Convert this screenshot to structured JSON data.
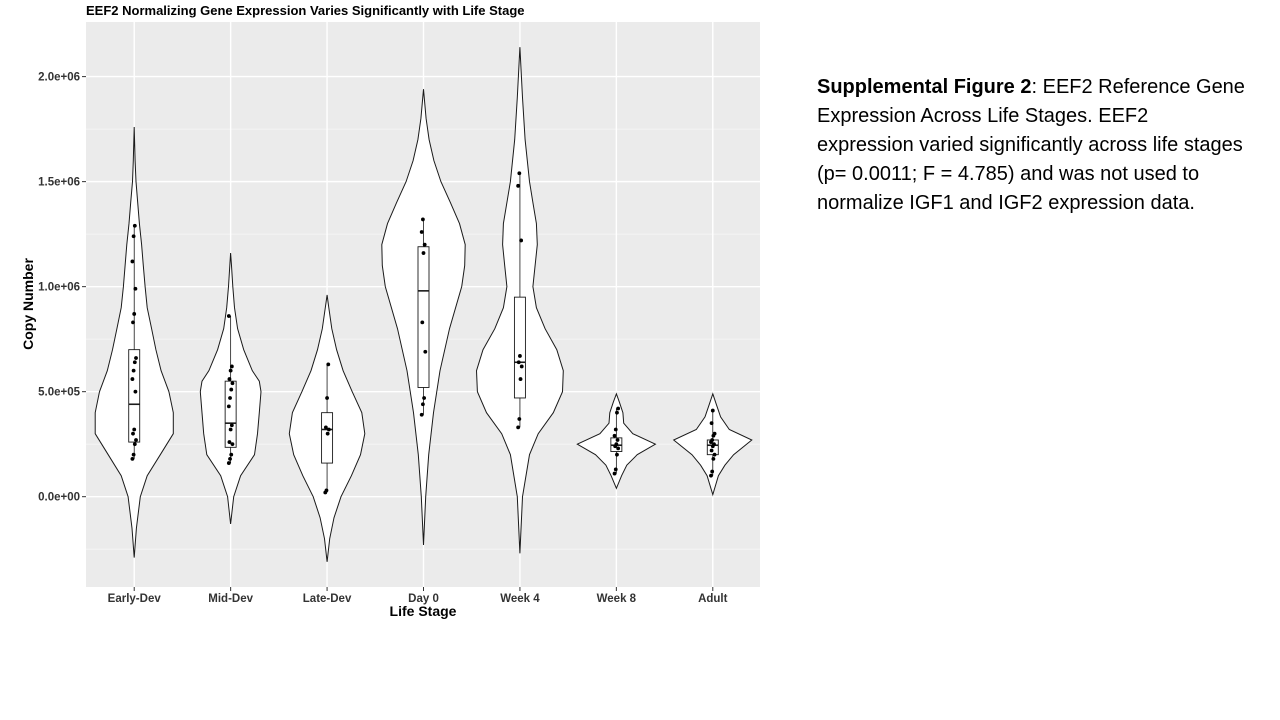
{
  "chart_data": {
    "type": "violin",
    "title": "EEF2 Normalizing Gene Expression Varies Significantly with Life Stage",
    "xlabel": "Life Stage",
    "ylabel": "Copy Number",
    "categories": [
      "Early-Dev",
      "Mid-Dev",
      "Late-Dev",
      "Day 0",
      "Week 4",
      "Week 8",
      "Adult"
    ],
    "y_ticks": [
      {
        "value": 0,
        "label": "0.0e+00"
      },
      {
        "value": 500000,
        "label": "5.0e+05"
      },
      {
        "value": 1000000,
        "label": "1.0e+06"
      },
      {
        "value": 1500000,
        "label": "1.5e+06"
      },
      {
        "value": 2000000,
        "label": "2.0e+06"
      }
    ],
    "ylim": [
      -430000,
      2260000
    ],
    "grid": true,
    "background": "#ebebeb",
    "groups": [
      {
        "name": "Early-Dev",
        "box": {
          "q1": 260000,
          "median": 440000,
          "q3": 700000,
          "whisker_low": 180000,
          "whisker_high": 1290000
        },
        "points": [
          180000,
          200000,
          250000,
          270000,
          300000,
          320000,
          500000,
          560000,
          600000,
          640000,
          660000,
          830000,
          870000,
          990000,
          1120000,
          1240000,
          1290000
        ],
        "density": [
          [
            -290000,
            0.0
          ],
          [
            -150000,
            0.05
          ],
          [
            0,
            0.14
          ],
          [
            100000,
            0.3
          ],
          [
            200000,
            0.6
          ],
          [
            300000,
            0.9
          ],
          [
            400000,
            0.9
          ],
          [
            500000,
            0.8
          ],
          [
            600000,
            0.62
          ],
          [
            700000,
            0.5
          ],
          [
            800000,
            0.4
          ],
          [
            900000,
            0.3
          ],
          [
            1000000,
            0.25
          ],
          [
            1100000,
            0.21
          ],
          [
            1200000,
            0.17
          ],
          [
            1300000,
            0.12
          ],
          [
            1400000,
            0.08
          ],
          [
            1500000,
            0.04
          ],
          [
            1600000,
            0.02
          ],
          [
            1760000,
            0.0
          ]
        ]
      },
      {
        "name": "Mid-Dev",
        "box": {
          "q1": 235000,
          "median": 350000,
          "q3": 550000,
          "whisker_low": 160000,
          "whisker_high": 860000
        },
        "points": [
          160000,
          180000,
          200000,
          250000,
          260000,
          320000,
          340000,
          430000,
          470000,
          510000,
          540000,
          560000,
          600000,
          620000,
          860000
        ],
        "density": [
          [
            -130000,
            0.0
          ],
          [
            0,
            0.07
          ],
          [
            100000,
            0.23
          ],
          [
            200000,
            0.55
          ],
          [
            300000,
            0.62
          ],
          [
            400000,
            0.66
          ],
          [
            500000,
            0.7
          ],
          [
            550000,
            0.66
          ],
          [
            600000,
            0.5
          ],
          [
            700000,
            0.3
          ],
          [
            800000,
            0.16
          ],
          [
            900000,
            0.09
          ],
          [
            1000000,
            0.05
          ],
          [
            1100000,
            0.02
          ],
          [
            1160000,
            0.0
          ]
        ]
      },
      {
        "name": "Late-Dev",
        "box": {
          "q1": 160000,
          "median": 320000,
          "q3": 400000,
          "whisker_low": 20000,
          "whisker_high": 630000
        },
        "points": [
          20000,
          30000,
          300000,
          320000,
          330000,
          470000,
          630000
        ],
        "density": [
          [
            -310000,
            0.0
          ],
          [
            -200000,
            0.06
          ],
          [
            -100000,
            0.16
          ],
          [
            0,
            0.32
          ],
          [
            100000,
            0.56
          ],
          [
            200000,
            0.77
          ],
          [
            300000,
            0.87
          ],
          [
            400000,
            0.8
          ],
          [
            500000,
            0.58
          ],
          [
            600000,
            0.37
          ],
          [
            700000,
            0.22
          ],
          [
            800000,
            0.11
          ],
          [
            900000,
            0.04
          ],
          [
            960000,
            0.0
          ]
        ]
      },
      {
        "name": "Day 0",
        "box": {
          "q1": 520000,
          "median": 980000,
          "q3": 1190000,
          "whisker_low": 390000,
          "whisker_high": 1320000
        },
        "points": [
          390000,
          440000,
          470000,
          690000,
          830000,
          1160000,
          1200000,
          1260000,
          1320000
        ],
        "density": [
          [
            -230000,
            0.0
          ],
          [
            0,
            0.05
          ],
          [
            200000,
            0.12
          ],
          [
            400000,
            0.23
          ],
          [
            600000,
            0.38
          ],
          [
            800000,
            0.6
          ],
          [
            1000000,
            0.88
          ],
          [
            1100000,
            0.95
          ],
          [
            1200000,
            0.96
          ],
          [
            1300000,
            0.83
          ],
          [
            1400000,
            0.62
          ],
          [
            1500000,
            0.4
          ],
          [
            1600000,
            0.24
          ],
          [
            1700000,
            0.13
          ],
          [
            1800000,
            0.06
          ],
          [
            1940000,
            0.0
          ]
        ]
      },
      {
        "name": "Week 4",
        "box": {
          "q1": 470000,
          "median": 640000,
          "q3": 950000,
          "whisker_low": 330000,
          "whisker_high": 1540000
        },
        "points": [
          330000,
          370000,
          560000,
          620000,
          640000,
          670000,
          1220000,
          1480000,
          1540000
        ],
        "density": [
          [
            -270000,
            0.0
          ],
          [
            0,
            0.06
          ],
          [
            200000,
            0.22
          ],
          [
            300000,
            0.42
          ],
          [
            400000,
            0.77
          ],
          [
            500000,
            0.98
          ],
          [
            600000,
            1.0
          ],
          [
            700000,
            0.85
          ],
          [
            800000,
            0.58
          ],
          [
            900000,
            0.38
          ],
          [
            1000000,
            0.3
          ],
          [
            1100000,
            0.35
          ],
          [
            1200000,
            0.4
          ],
          [
            1300000,
            0.38
          ],
          [
            1400000,
            0.3
          ],
          [
            1500000,
            0.22
          ],
          [
            1700000,
            0.12
          ],
          [
            1900000,
            0.06
          ],
          [
            2140000,
            0.0
          ]
        ]
      },
      {
        "name": "Week 8",
        "box": {
          "q1": 215000,
          "median": 245000,
          "q3": 280000,
          "whisker_low": 110000,
          "whisker_high": 420000
        },
        "points": [
          110000,
          130000,
          200000,
          230000,
          240000,
          250000,
          270000,
          290000,
          320000,
          400000,
          420000
        ],
        "density": [
          [
            40000,
            0.0
          ],
          [
            100000,
            0.12
          ],
          [
            150000,
            0.24
          ],
          [
            200000,
            0.48
          ],
          [
            250000,
            0.9
          ],
          [
            300000,
            0.38
          ],
          [
            350000,
            0.17
          ],
          [
            400000,
            0.15
          ],
          [
            450000,
            0.07
          ],
          [
            490000,
            0.0
          ]
        ]
      },
      {
        "name": "Adult",
        "box": {
          "q1": 200000,
          "median": 245000,
          "q3": 270000,
          "whisker_low": 100000,
          "whisker_high": 410000
        },
        "points": [
          100000,
          120000,
          180000,
          200000,
          220000,
          240000,
          250000,
          260000,
          270000,
          290000,
          300000,
          350000,
          410000
        ],
        "density": [
          [
            10000,
            0.0
          ],
          [
            100000,
            0.13
          ],
          [
            150000,
            0.28
          ],
          [
            200000,
            0.48
          ],
          [
            270000,
            0.9
          ],
          [
            320000,
            0.38
          ],
          [
            380000,
            0.18
          ],
          [
            440000,
            0.08
          ],
          [
            490000,
            0.0
          ]
        ]
      }
    ]
  },
  "caption": {
    "bold": "Supplemental Figure 2",
    "text": ": EEF2 Reference Gene Expression Across Life Stages. EEF2 expression varied significantly across life stages (p= 0.0011; F = 4.785) and was not used to normalize IGF1 and IGF2 expression data."
  }
}
